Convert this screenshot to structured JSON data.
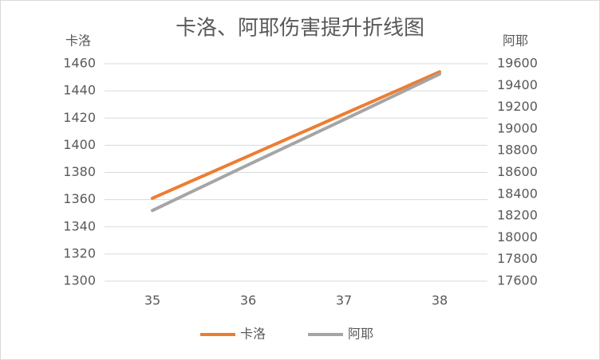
{
  "chart_data": {
    "type": "line",
    "title": "卡洛、阿耶伤害提升折线图",
    "y_label": "卡洛",
    "y2_label": "阿耶",
    "categories": [
      35,
      36,
      37,
      38
    ],
    "series": [
      {
        "name": "卡洛",
        "color": "#ed7d31",
        "values": [
          1361,
          1392,
          1423,
          1454
        ]
      },
      {
        "name": "阿耶",
        "color": "#a5a5a5",
        "axis": "y2",
        "values": [
          18250,
          18670,
          19085,
          19505
        ]
      }
    ],
    "ylim": [
      1300,
      1460
    ],
    "yticks": [
      1300,
      1320,
      1340,
      1360,
      1380,
      1400,
      1420,
      1440,
      1460
    ],
    "y2lim": [
      17600,
      19600
    ],
    "y2ticks": [
      17600,
      17800,
      18000,
      18200,
      18400,
      18600,
      18800,
      19000,
      19200,
      19400,
      19600
    ],
    "grid": true,
    "legend": "bottom"
  }
}
